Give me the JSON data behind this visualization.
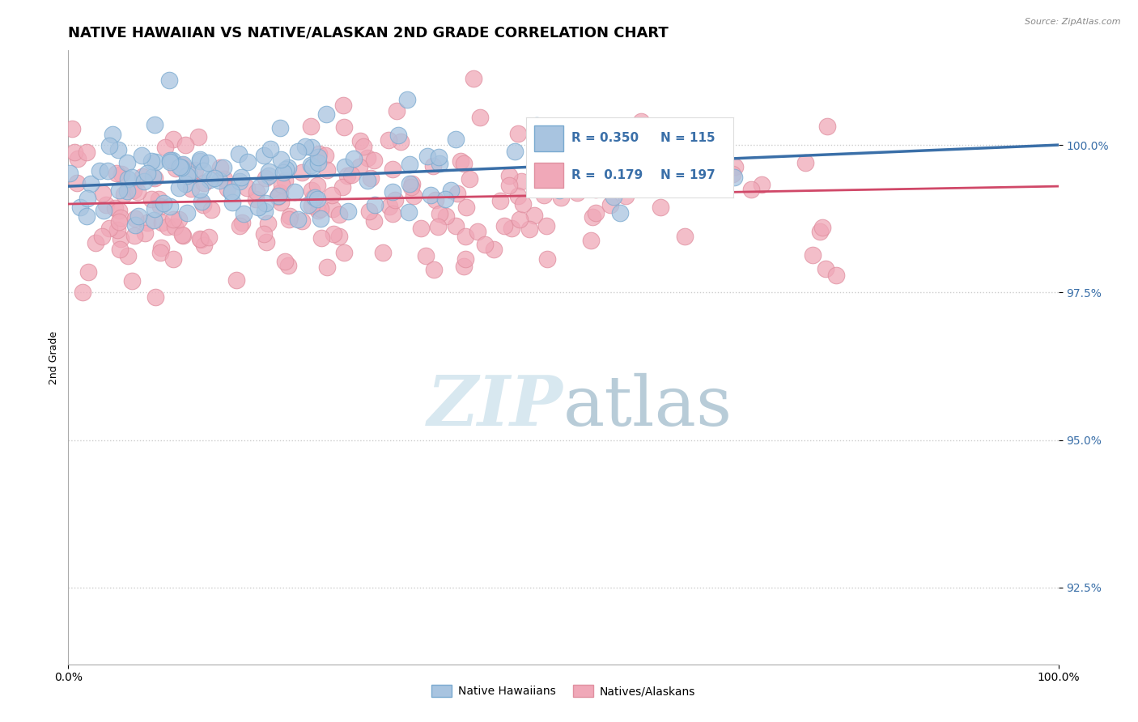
{
  "title": "NATIVE HAWAIIAN VS NATIVE/ALASKAN 2ND GRADE CORRELATION CHART",
  "source": "Source: ZipAtlas.com",
  "ylabel": "2nd Grade",
  "xlim": [
    0,
    100
  ],
  "ylim": [
    91.2,
    101.6
  ],
  "ytick_labels": [
    "92.5%",
    "95.0%",
    "97.5%",
    "100.0%"
  ],
  "ytick_values": [
    92.5,
    95.0,
    97.5,
    100.0
  ],
  "xtick_labels": [
    "0.0%",
    "100.0%"
  ],
  "xtick_values": [
    0,
    100
  ],
  "blue_R": 0.35,
  "blue_N": 115,
  "pink_R": 0.179,
  "pink_N": 197,
  "blue_color": "#a8c4e0",
  "blue_edge_color": "#7aaad0",
  "blue_line_color": "#3a6fa8",
  "pink_color": "#f0a8b8",
  "pink_edge_color": "#e090a0",
  "pink_line_color": "#d04868",
  "background_color": "#ffffff",
  "grid_color": "#cccccc",
  "watermark_color": "#d8e8f0",
  "legend_blue_label": "Native Hawaiians",
  "legend_pink_label": "Natives/Alaskans",
  "title_fontsize": 13,
  "axis_label_fontsize": 9,
  "tick_fontsize": 10,
  "legend_fontsize": 10,
  "seed": 42,
  "blue_y_intercept": 99.3,
  "blue_slope": 0.007,
  "pink_y_intercept": 99.0,
  "pink_slope": 0.003
}
